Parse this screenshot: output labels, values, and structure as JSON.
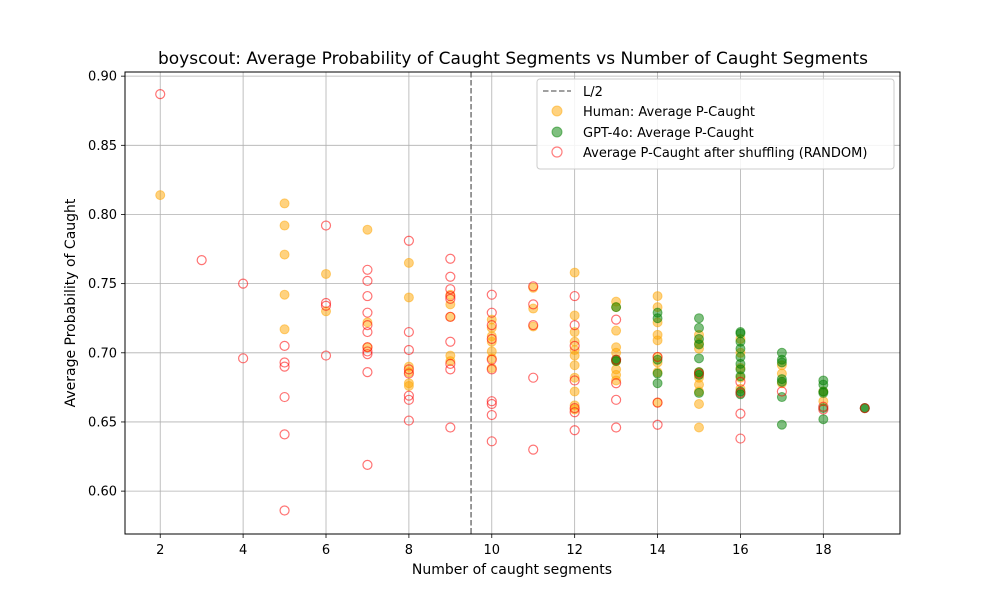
{
  "chart_data": {
    "type": "scatter",
    "title": "boyscout: Average Probability of Caught Segments vs Number of Caught Segments",
    "xlabel": "Number of caught segments",
    "ylabel": "Average Probability of Caught",
    "xlim": [
      1.15,
      19.85
    ],
    "ylim": [
      0.569,
      0.903
    ],
    "xticks": [
      2,
      4,
      6,
      8,
      10,
      12,
      14,
      16,
      18
    ],
    "yticks": [
      0.6,
      0.65,
      0.7,
      0.75,
      0.8,
      0.85,
      0.9
    ],
    "xtick_labels": [
      "2",
      "4",
      "6",
      "8",
      "10",
      "12",
      "14",
      "16",
      "18"
    ],
    "ytick_labels": [
      "0.60",
      "0.65",
      "0.70",
      "0.75",
      "0.80",
      "0.85",
      "0.90"
    ],
    "grid": true,
    "legend_position": "top-right",
    "vline": {
      "x": 9.5,
      "label": "L/2",
      "color": "#808080"
    },
    "series": [
      {
        "name": "Human: Average P-Caught",
        "color": "#ffa500",
        "marker": "filled-circle",
        "points": [
          [
            2,
            0.814
          ],
          [
            5,
            0.808
          ],
          [
            5,
            0.792
          ],
          [
            5,
            0.771
          ],
          [
            5,
            0.742
          ],
          [
            5,
            0.717
          ],
          [
            6,
            0.757
          ],
          [
            6,
            0.73
          ],
          [
            7,
            0.789
          ],
          [
            7,
            0.722
          ],
          [
            7,
            0.704
          ],
          [
            8,
            0.765
          ],
          [
            8,
            0.74
          ],
          [
            8,
            0.69
          ],
          [
            8,
            0.686
          ],
          [
            8,
            0.678
          ],
          [
            8,
            0.676
          ],
          [
            9,
            0.742
          ],
          [
            9,
            0.735
          ],
          [
            9,
            0.726
          ],
          [
            9,
            0.698
          ],
          [
            9,
            0.694
          ],
          [
            10,
            0.724
          ],
          [
            10,
            0.718
          ],
          [
            10,
            0.712
          ],
          [
            10,
            0.708
          ],
          [
            10,
            0.701
          ],
          [
            10,
            0.696
          ],
          [
            10,
            0.689
          ],
          [
            11,
            0.747
          ],
          [
            11,
            0.732
          ],
          [
            11,
            0.719
          ],
          [
            12,
            0.758
          ],
          [
            12,
            0.727
          ],
          [
            12,
            0.715
          ],
          [
            12,
            0.708
          ],
          [
            12,
            0.702
          ],
          [
            12,
            0.698
          ],
          [
            12,
            0.691
          ],
          [
            12,
            0.682
          ],
          [
            12,
            0.672
          ],
          [
            12,
            0.662
          ],
          [
            12,
            0.659
          ],
          [
            13,
            0.737
          ],
          [
            13,
            0.733
          ],
          [
            13,
            0.716
          ],
          [
            13,
            0.704
          ],
          [
            13,
            0.7
          ],
          [
            13,
            0.694
          ],
          [
            13,
            0.688
          ],
          [
            13,
            0.684
          ],
          [
            13,
            0.68
          ],
          [
            14,
            0.741
          ],
          [
            14,
            0.733
          ],
          [
            14,
            0.722
          ],
          [
            14,
            0.713
          ],
          [
            14,
            0.709
          ],
          [
            14,
            0.697
          ],
          [
            14,
            0.693
          ],
          [
            14,
            0.686
          ],
          [
            14,
            0.664
          ],
          [
            15,
            0.713
          ],
          [
            15,
            0.707
          ],
          [
            15,
            0.703
          ],
          [
            15,
            0.686
          ],
          [
            15,
            0.682
          ],
          [
            15,
            0.677
          ],
          [
            15,
            0.672
          ],
          [
            15,
            0.663
          ],
          [
            15,
            0.646
          ],
          [
            16,
            0.71
          ],
          [
            16,
            0.7
          ],
          [
            16,
            0.689
          ],
          [
            16,
            0.682
          ],
          [
            16,
            0.674
          ],
          [
            17,
            0.691
          ],
          [
            17,
            0.685
          ],
          [
            17,
            0.678
          ],
          [
            18,
            0.672
          ],
          [
            18,
            0.665
          ]
        ]
      },
      {
        "name": "GPT-4o: Average P-Caught",
        "color": "#008000",
        "marker": "filled-circle",
        "points": [
          [
            13,
            0.733
          ],
          [
            13,
            0.695
          ],
          [
            13,
            0.694
          ],
          [
            14,
            0.729
          ],
          [
            14,
            0.725
          ],
          [
            14,
            0.695
          ],
          [
            14,
            0.685
          ],
          [
            14,
            0.678
          ],
          [
            15,
            0.725
          ],
          [
            15,
            0.718
          ],
          [
            15,
            0.71
          ],
          [
            15,
            0.706
          ],
          [
            15,
            0.696
          ],
          [
            15,
            0.686
          ],
          [
            15,
            0.684
          ],
          [
            15,
            0.671
          ],
          [
            16,
            0.715
          ],
          [
            16,
            0.714
          ],
          [
            16,
            0.708
          ],
          [
            16,
            0.703
          ],
          [
            16,
            0.697
          ],
          [
            16,
            0.692
          ],
          [
            16,
            0.688
          ],
          [
            16,
            0.683
          ],
          [
            16,
            0.672
          ],
          [
            16,
            0.67
          ],
          [
            17,
            0.7
          ],
          [
            17,
            0.695
          ],
          [
            17,
            0.693
          ],
          [
            17,
            0.681
          ],
          [
            17,
            0.679
          ],
          [
            17,
            0.668
          ],
          [
            17,
            0.648
          ],
          [
            18,
            0.68
          ],
          [
            18,
            0.677
          ],
          [
            18,
            0.672
          ],
          [
            18,
            0.671
          ],
          [
            18,
            0.66
          ],
          [
            18,
            0.652
          ],
          [
            19,
            0.66
          ],
          [
            19,
            0.66
          ]
        ]
      },
      {
        "name": "Average P-Caught after shuffling (RANDOM)",
        "color": "#ff0000",
        "marker": "hollow-circle",
        "points": [
          [
            2,
            0.887
          ],
          [
            3,
            0.767
          ],
          [
            4,
            0.75
          ],
          [
            4,
            0.696
          ],
          [
            5,
            0.705
          ],
          [
            5,
            0.693
          ],
          [
            5,
            0.69
          ],
          [
            5,
            0.668
          ],
          [
            5,
            0.641
          ],
          [
            5,
            0.586
          ],
          [
            6,
            0.792
          ],
          [
            6,
            0.736
          ],
          [
            6,
            0.734
          ],
          [
            6,
            0.698
          ],
          [
            7,
            0.76
          ],
          [
            7,
            0.752
          ],
          [
            7,
            0.741
          ],
          [
            7,
            0.729
          ],
          [
            7,
            0.72
          ],
          [
            7,
            0.715
          ],
          [
            7,
            0.704
          ],
          [
            7,
            0.701
          ],
          [
            7,
            0.699
          ],
          [
            7,
            0.686
          ],
          [
            7,
            0.619
          ],
          [
            8,
            0.781
          ],
          [
            8,
            0.715
          ],
          [
            8,
            0.702
          ],
          [
            8,
            0.688
          ],
          [
            8,
            0.685
          ],
          [
            8,
            0.669
          ],
          [
            8,
            0.666
          ],
          [
            8,
            0.651
          ],
          [
            9,
            0.768
          ],
          [
            9,
            0.755
          ],
          [
            9,
            0.746
          ],
          [
            9,
            0.741
          ],
          [
            9,
            0.739
          ],
          [
            9,
            0.726
          ],
          [
            9,
            0.708
          ],
          [
            9,
            0.692
          ],
          [
            9,
            0.688
          ],
          [
            9,
            0.646
          ],
          [
            10,
            0.742
          ],
          [
            10,
            0.729
          ],
          [
            10,
            0.72
          ],
          [
            10,
            0.71
          ],
          [
            10,
            0.695
          ],
          [
            10,
            0.688
          ],
          [
            10,
            0.665
          ],
          [
            10,
            0.663
          ],
          [
            10,
            0.655
          ],
          [
            10,
            0.636
          ],
          [
            11,
            0.748
          ],
          [
            11,
            0.735
          ],
          [
            11,
            0.72
          ],
          [
            11,
            0.682
          ],
          [
            11,
            0.63
          ],
          [
            12,
            0.741
          ],
          [
            12,
            0.72
          ],
          [
            12,
            0.705
          ],
          [
            12,
            0.68
          ],
          [
            12,
            0.66
          ],
          [
            12,
            0.657
          ],
          [
            12,
            0.644
          ],
          [
            13,
            0.724
          ],
          [
            13,
            0.695
          ],
          [
            13,
            0.678
          ],
          [
            13,
            0.666
          ],
          [
            13,
            0.646
          ],
          [
            14,
            0.697
          ],
          [
            14,
            0.664
          ],
          [
            14,
            0.648
          ],
          [
            15,
            0.685
          ],
          [
            16,
            0.679
          ],
          [
            16,
            0.671
          ],
          [
            16,
            0.656
          ],
          [
            16,
            0.638
          ],
          [
            17,
            0.672
          ],
          [
            18,
            0.661
          ],
          [
            18,
            0.659
          ],
          [
            19,
            0.66
          ]
        ]
      }
    ]
  }
}
